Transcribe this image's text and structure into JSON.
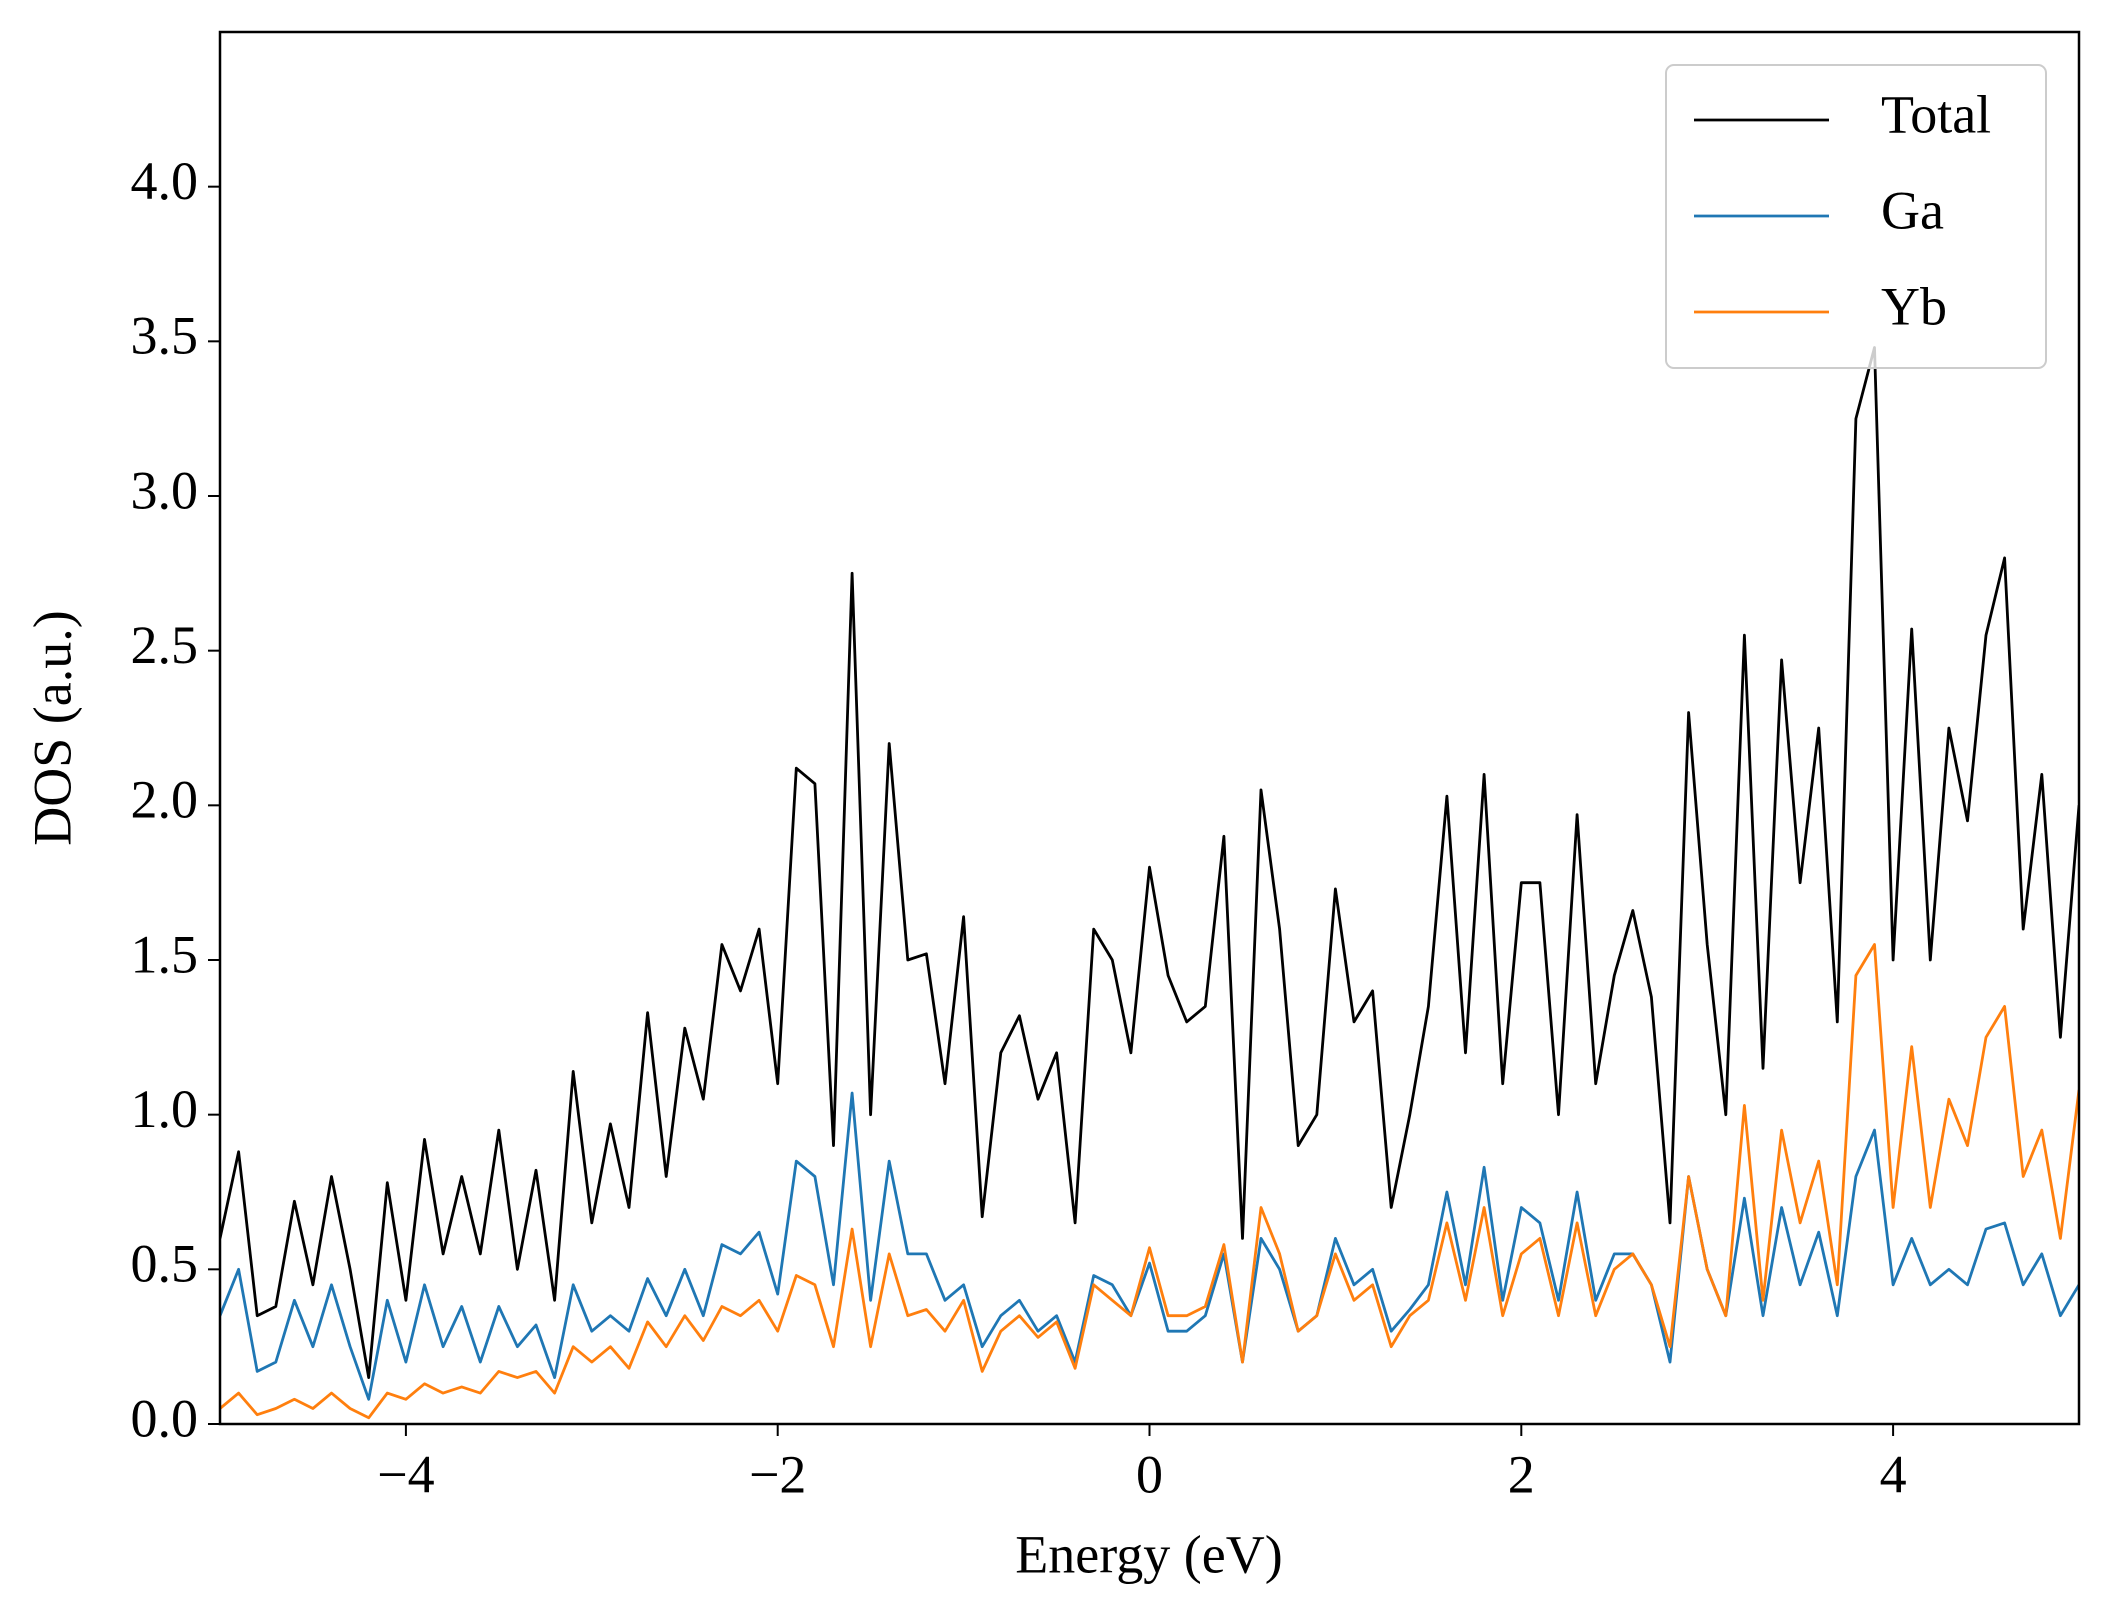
{
  "chart_data": {
    "type": "line",
    "xlabel": "Energy (eV)",
    "ylabel": "DOS (a.u.)",
    "x": [
      -5.0,
      -4.9,
      -4.8,
      -4.7,
      -4.6,
      -4.5,
      -4.4,
      -4.3,
      -4.2,
      -4.1,
      -4.0,
      -3.9,
      -3.8,
      -3.7,
      -3.6,
      -3.5,
      -3.4,
      -3.3,
      -3.2,
      -3.1,
      -3.0,
      -2.9,
      -2.8,
      -2.7,
      -2.6,
      -2.5,
      -2.4,
      -2.3,
      -2.2,
      -2.1,
      -2.0,
      -1.9,
      -1.8,
      -1.7,
      -1.6,
      -1.5,
      -1.4,
      -1.3,
      -1.2,
      -1.1,
      -1.0,
      -0.9,
      -0.8,
      -0.7,
      -0.6,
      -0.5,
      -0.4,
      -0.3,
      -0.2,
      -0.1,
      0.0,
      0.1,
      0.2,
      0.3,
      0.4,
      0.5,
      0.6,
      0.7,
      0.8,
      0.9,
      1.0,
      1.1,
      1.2,
      1.3,
      1.4,
      1.5,
      1.6,
      1.7,
      1.8,
      1.9,
      2.0,
      2.1,
      2.2,
      2.3,
      2.4,
      2.5,
      2.6,
      2.7,
      2.8,
      2.9,
      3.0,
      3.1,
      3.2,
      3.3,
      3.4,
      3.5,
      3.6,
      3.7,
      3.8,
      3.9,
      4.0,
      4.1,
      4.2,
      4.3,
      4.4,
      4.5,
      4.6,
      4.7,
      4.8,
      4.9,
      5.0
    ],
    "series": [
      {
        "name": "Total",
        "color": "#000000",
        "values": [
          0.6,
          0.88,
          0.35,
          0.38,
          0.72,
          0.45,
          0.8,
          0.5,
          0.15,
          0.78,
          0.4,
          0.92,
          0.55,
          0.8,
          0.55,
          0.95,
          0.5,
          0.82,
          0.4,
          1.14,
          0.65,
          0.97,
          0.7,
          1.33,
          0.8,
          1.28,
          1.05,
          1.55,
          1.4,
          1.6,
          1.1,
          2.12,
          2.07,
          0.9,
          2.75,
          1.0,
          2.2,
          1.5,
          1.52,
          1.1,
          1.64,
          0.67,
          1.2,
          1.32,
          1.05,
          1.2,
          0.65,
          1.6,
          1.5,
          1.2,
          1.8,
          1.45,
          1.3,
          1.35,
          1.9,
          0.6,
          2.05,
          1.6,
          0.9,
          1.0,
          1.73,
          1.3,
          1.4,
          0.7,
          1.0,
          1.35,
          2.03,
          1.2,
          2.1,
          1.1,
          1.75,
          1.75,
          1.0,
          1.97,
          1.1,
          1.45,
          1.66,
          1.38,
          0.65,
          2.3,
          1.55,
          1.0,
          2.55,
          1.15,
          2.47,
          1.75,
          2.25,
          1.3,
          3.25,
          3.48,
          1.5,
          2.57,
          1.5,
          2.25,
          1.95,
          2.55,
          2.8,
          1.6,
          2.1,
          1.25,
          2.0
        ]
      },
      {
        "name": "Ga",
        "color": "#1f77b4",
        "values": [
          0.35,
          0.5,
          0.17,
          0.2,
          0.4,
          0.25,
          0.45,
          0.25,
          0.08,
          0.4,
          0.2,
          0.45,
          0.25,
          0.38,
          0.2,
          0.38,
          0.25,
          0.32,
          0.15,
          0.45,
          0.3,
          0.35,
          0.3,
          0.47,
          0.35,
          0.5,
          0.35,
          0.58,
          0.55,
          0.62,
          0.42,
          0.85,
          0.8,
          0.45,
          1.07,
          0.4,
          0.85,
          0.55,
          0.55,
          0.4,
          0.45,
          0.25,
          0.35,
          0.4,
          0.3,
          0.35,
          0.2,
          0.48,
          0.45,
          0.35,
          0.52,
          0.3,
          0.3,
          0.35,
          0.55,
          0.2,
          0.6,
          0.5,
          0.3,
          0.35,
          0.6,
          0.45,
          0.5,
          0.3,
          0.37,
          0.45,
          0.75,
          0.45,
          0.83,
          0.4,
          0.7,
          0.65,
          0.4,
          0.75,
          0.4,
          0.55,
          0.55,
          0.45,
          0.2,
          0.8,
          0.5,
          0.35,
          0.73,
          0.35,
          0.7,
          0.45,
          0.62,
          0.35,
          0.8,
          0.95,
          0.45,
          0.6,
          0.45,
          0.5,
          0.45,
          0.63,
          0.65,
          0.45,
          0.55,
          0.35,
          0.45
        ]
      },
      {
        "name": "Yb",
        "color": "#ff7f0e",
        "values": [
          0.05,
          0.1,
          0.03,
          0.05,
          0.08,
          0.05,
          0.1,
          0.05,
          0.02,
          0.1,
          0.08,
          0.13,
          0.1,
          0.12,
          0.1,
          0.17,
          0.15,
          0.17,
          0.1,
          0.25,
          0.2,
          0.25,
          0.18,
          0.33,
          0.25,
          0.35,
          0.27,
          0.38,
          0.35,
          0.4,
          0.3,
          0.48,
          0.45,
          0.25,
          0.63,
          0.25,
          0.55,
          0.35,
          0.37,
          0.3,
          0.4,
          0.17,
          0.3,
          0.35,
          0.28,
          0.33,
          0.18,
          0.45,
          0.4,
          0.35,
          0.57,
          0.35,
          0.35,
          0.38,
          0.58,
          0.2,
          0.7,
          0.55,
          0.3,
          0.35,
          0.55,
          0.4,
          0.45,
          0.25,
          0.35,
          0.4,
          0.65,
          0.4,
          0.7,
          0.35,
          0.55,
          0.6,
          0.35,
          0.65,
          0.35,
          0.5,
          0.55,
          0.45,
          0.25,
          0.8,
          0.5,
          0.35,
          1.03,
          0.4,
          0.95,
          0.65,
          0.85,
          0.45,
          1.45,
          1.55,
          0.7,
          1.22,
          0.7,
          1.05,
          0.9,
          1.25,
          1.35,
          0.8,
          0.95,
          0.6,
          1.08
        ]
      }
    ],
    "xlim": [
      -5,
      5
    ],
    "xticks": [
      {
        "value": -4,
        "label": "−4"
      },
      {
        "value": -2,
        "label": "−2"
      },
      0,
      2,
      4
    ],
    "ylim": [
      0,
      4.5
    ],
    "yticks": [
      {
        "value": 0,
        "label": "0.0"
      },
      {
        "value": 0.5,
        "label": "0.5"
      },
      {
        "value": 1,
        "label": "1.0"
      },
      {
        "value": 1.5,
        "label": "1.5"
      },
      {
        "value": 2,
        "label": "2.0"
      },
      {
        "value": 2.5,
        "label": "2.5"
      },
      {
        "value": 3,
        "label": "3.0"
      },
      {
        "value": 3.5,
        "label": "3.5"
      },
      {
        "value": 4,
        "label": "4.0"
      }
    ],
    "legend": "upper right"
  }
}
